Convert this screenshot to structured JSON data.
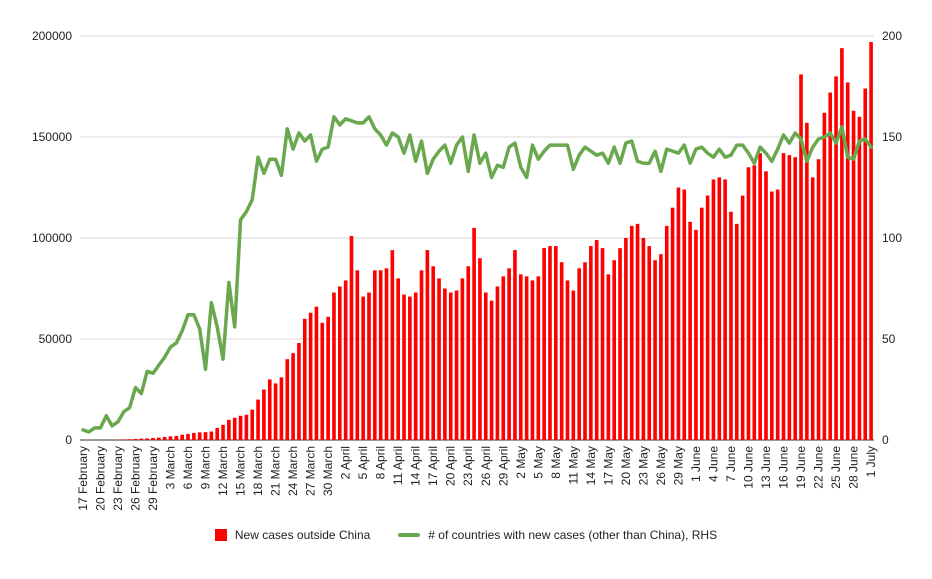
{
  "chart_data": {
    "type": "bar",
    "title": "",
    "colors": {
      "bars": "#ff0000",
      "line": "#6aa84f",
      "grid": "#d9d9d9",
      "text": "#222222"
    },
    "grid": true,
    "legend_position": "bottom",
    "y_left": {
      "min": 0,
      "max": 200000,
      "ticks": [
        0,
        50000,
        100000,
        150000,
        200000
      ],
      "tick_labels": [
        "0",
        "50000",
        "100000",
        "150000",
        "200000"
      ]
    },
    "y_right": {
      "min": 0,
      "max": 200,
      "ticks": [
        0,
        50,
        100,
        150,
        200
      ],
      "tick_labels": [
        "0",
        "50",
        "100",
        "150",
        "200"
      ]
    },
    "x": [
      "17 Feb",
      "18 Feb",
      "19 Feb",
      "20 Feb",
      "21 Feb",
      "22 Feb",
      "23 Feb",
      "24 Feb",
      "25 Feb",
      "26 Feb",
      "27 Feb",
      "28 Feb",
      "29 Feb",
      "1 Mar",
      "2 Mar",
      "3 Mar",
      "4 Mar",
      "5 Mar",
      "6 Mar",
      "7 Mar",
      "8 Mar",
      "9 Mar",
      "10 Mar",
      "11 Mar",
      "12 Mar",
      "13 Mar",
      "14 Mar",
      "15 Mar",
      "16 Mar",
      "17 Mar",
      "18 Mar",
      "19 Mar",
      "20 Mar",
      "21 Mar",
      "22 Mar",
      "23 Mar",
      "24 Mar",
      "25 Mar",
      "26 Mar",
      "27 Mar",
      "28 Mar",
      "29 Mar",
      "30 Mar",
      "31 Mar",
      "1 Apr",
      "2 Apr",
      "3 Apr",
      "4 Apr",
      "5 Apr",
      "6 Apr",
      "7 Apr",
      "8 Apr",
      "9 Apr",
      "10 Apr",
      "11 Apr",
      "12 Apr",
      "13 Apr",
      "14 Apr",
      "15 Apr",
      "16 Apr",
      "17 Apr",
      "18 Apr",
      "19 Apr",
      "20 Apr",
      "21 Apr",
      "22 Apr",
      "23 Apr",
      "24 Apr",
      "25 Apr",
      "26 Apr",
      "27 Apr",
      "28 Apr",
      "29 Apr",
      "30 Apr",
      "1 May",
      "2 May",
      "3 May",
      "4 May",
      "5 May",
      "6 May",
      "7 May",
      "8 May",
      "9 May",
      "10 May",
      "11 May",
      "12 May",
      "13 May",
      "14 May",
      "15 May",
      "16 May",
      "17 May",
      "18 May",
      "19 May",
      "20 May",
      "21 May",
      "22 May",
      "23 May",
      "24 May",
      "25 May",
      "26 May",
      "27 May",
      "28 May",
      "29 May",
      "30 May",
      "31 May",
      "1 Jun",
      "2 Jun",
      "3 Jun",
      "4 Jun",
      "5 Jun",
      "6 Jun",
      "7 Jun",
      "8 Jun",
      "9 Jun",
      "10 Jun",
      "11 Jun",
      "12 Jun",
      "13 Jun",
      "14 Jun",
      "15 Jun",
      "16 Jun",
      "17 Jun",
      "18 Jun",
      "19 Jun",
      "20 Jun",
      "21 Jun",
      "22 Jun",
      "23 Jun",
      "24 Jun",
      "25 Jun",
      "26 Jun",
      "27 Jun",
      "28 Jun",
      "29 Jun",
      "30 Jun",
      "1 Jul"
    ],
    "x_tick_labels": [
      {
        "index": 0,
        "label": "17 February"
      },
      {
        "index": 3,
        "label": "20 February"
      },
      {
        "index": 6,
        "label": "23 February"
      },
      {
        "index": 9,
        "label": "26 February"
      },
      {
        "index": 12,
        "label": "29 February"
      },
      {
        "index": 15,
        "label": "3 March"
      },
      {
        "index": 18,
        "label": "6 March"
      },
      {
        "index": 21,
        "label": "9 March"
      },
      {
        "index": 24,
        "label": "12 March"
      },
      {
        "index": 27,
        "label": "15 March"
      },
      {
        "index": 30,
        "label": "18 March"
      },
      {
        "index": 33,
        "label": "21 March"
      },
      {
        "index": 36,
        "label": "24 March"
      },
      {
        "index": 39,
        "label": "27 March"
      },
      {
        "index": 42,
        "label": "30 March"
      },
      {
        "index": 45,
        "label": "2 April"
      },
      {
        "index": 48,
        "label": "5 April"
      },
      {
        "index": 51,
        "label": "8 April"
      },
      {
        "index": 54,
        "label": "11 April"
      },
      {
        "index": 57,
        "label": "14 April"
      },
      {
        "index": 60,
        "label": "17 April"
      },
      {
        "index": 63,
        "label": "20 April"
      },
      {
        "index": 66,
        "label": "23 April"
      },
      {
        "index": 69,
        "label": "26 April"
      },
      {
        "index": 72,
        "label": "29 April"
      },
      {
        "index": 75,
        "label": "2 May"
      },
      {
        "index": 78,
        "label": "5 May"
      },
      {
        "index": 81,
        "label": "8 May"
      },
      {
        "index": 84,
        "label": "11 May"
      },
      {
        "index": 87,
        "label": "14 May"
      },
      {
        "index": 90,
        "label": "17 May"
      },
      {
        "index": 93,
        "label": "20 May"
      },
      {
        "index": 96,
        "label": "23 May"
      },
      {
        "index": 99,
        "label": "26 May"
      },
      {
        "index": 102,
        "label": "29 May"
      },
      {
        "index": 105,
        "label": "1 June"
      },
      {
        "index": 108,
        "label": "4 June"
      },
      {
        "index": 111,
        "label": "7 June"
      },
      {
        "index": 114,
        "label": "10 June"
      },
      {
        "index": 117,
        "label": "13 June"
      },
      {
        "index": 120,
        "label": "16 June"
      },
      {
        "index": 123,
        "label": "19 June"
      },
      {
        "index": 126,
        "label": "22 June"
      },
      {
        "index": 129,
        "label": "25 June"
      },
      {
        "index": 132,
        "label": "28 June"
      },
      {
        "index": 135,
        "label": "1 July"
      }
    ],
    "series": [
      {
        "name": "New cases outside China",
        "type": "bar",
        "axis": "left",
        "values": [
          0,
          0,
          0,
          0,
          0,
          0,
          200,
          300,
          400,
          500,
          700,
          800,
          1000,
          1200,
          1500,
          1800,
          2000,
          2600,
          3000,
          3500,
          3800,
          3900,
          4200,
          6000,
          7500,
          10000,
          11000,
          12000,
          12500,
          15000,
          20000,
          25000,
          30000,
          28000,
          31000,
          40000,
          43000,
          48000,
          60000,
          63000,
          66000,
          58000,
          61000,
          73000,
          76000,
          79000,
          101000,
          84000,
          71000,
          73000,
          84000,
          84000,
          85000,
          94000,
          80000,
          72000,
          71000,
          73000,
          84000,
          94000,
          86000,
          80000,
          75000,
          73000,
          74000,
          80000,
          86000,
          105000,
          90000,
          73000,
          69000,
          76000,
          81000,
          85000,
          94000,
          82000,
          81000,
          79000,
          81000,
          95000,
          96000,
          96000,
          88000,
          79000,
          74000,
          85000,
          88000,
          96000,
          99000,
          95000,
          82000,
          89000,
          95000,
          100000,
          106000,
          107000,
          100000,
          96000,
          89000,
          92000,
          106000,
          115000,
          125000,
          124000,
          108000,
          104000,
          115000,
          121000,
          129000,
          130000,
          129000,
          113000,
          107000,
          121000,
          135000,
          136000,
          142000,
          133000,
          123000,
          124000,
          142000,
          141000,
          140000,
          181000,
          157000,
          130000,
          139000,
          162000,
          172000,
          180000,
          194000,
          177000,
          163000,
          160000,
          174000,
          197000
        ]
      },
      {
        "name": "# of countries with new cases (other than China), RHS",
        "type": "line",
        "axis": "right",
        "values": [
          5,
          4,
          6,
          6,
          12,
          7,
          9,
          14,
          16,
          26,
          23,
          34,
          33,
          37,
          41,
          46,
          48,
          54,
          62,
          62,
          55,
          35,
          68,
          56,
          40,
          78,
          56,
          109,
          113,
          119,
          140,
          132,
          139,
          139,
          131,
          154,
          144,
          152,
          148,
          151,
          138,
          144,
          145,
          160,
          156,
          159,
          158,
          157,
          157,
          160,
          154,
          151,
          146,
          152,
          150,
          142,
          151,
          138,
          148,
          132,
          139,
          143,
          146,
          137,
          146,
          150,
          133,
          151,
          137,
          142,
          130,
          136,
          135,
          145,
          147,
          135,
          130,
          146,
          139,
          143,
          146,
          146,
          146,
          146,
          134,
          141,
          145,
          143,
          141,
          142,
          137,
          145,
          137,
          147,
          148,
          138,
          137,
          137,
          143,
          133,
          144,
          143,
          142,
          146,
          137,
          144,
          145,
          142,
          140,
          144,
          140,
          141,
          146,
          146,
          142,
          137,
          145,
          142,
          138,
          144,
          151,
          147,
          152,
          149,
          138,
          145,
          149,
          150,
          152,
          147,
          155,
          140,
          139,
          148,
          149,
          145
        ]
      }
    ]
  },
  "legend": {
    "bars_label": "New cases outside China",
    "line_label": "# of countries with new cases (other than China), RHS"
  }
}
